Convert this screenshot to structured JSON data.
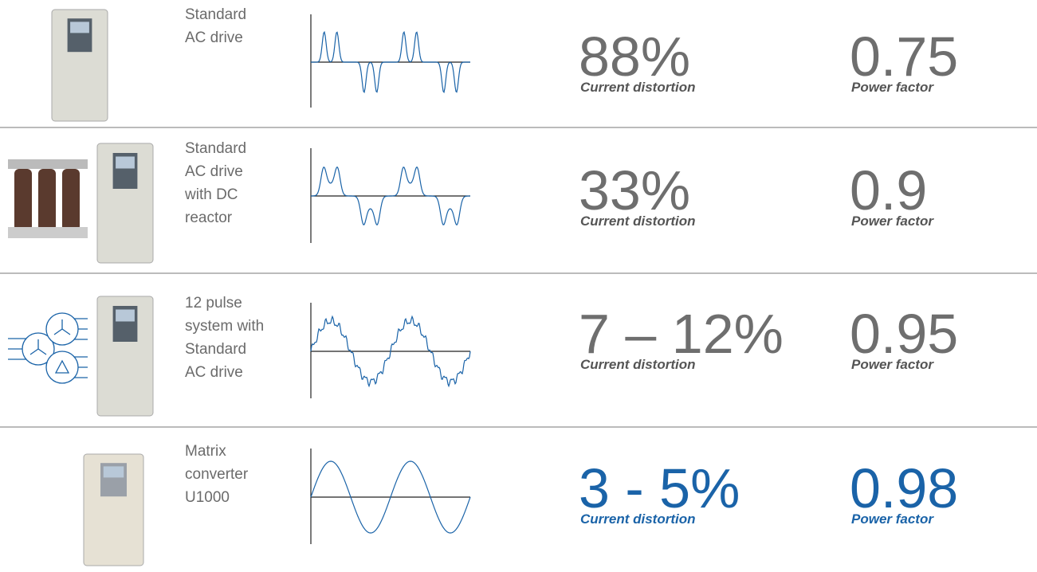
{
  "rows": [
    {
      "label_lines": [
        "Standard",
        "AC drive"
      ],
      "distortion": "88%",
      "distortion_caption": "Current distortion",
      "power_factor": "0.75",
      "power_factor_caption": "Power factor"
    },
    {
      "label_lines": [
        "Standard",
        "AC drive",
        "with DC",
        "reactor"
      ],
      "distortion": "33%",
      "distortion_caption": "Current distortion",
      "power_factor": "0.9",
      "power_factor_caption": "Power factor"
    },
    {
      "label_lines": [
        "12 pulse",
        "system with",
        "Standard",
        "AC drive"
      ],
      "distortion": "7 – 12%",
      "distortion_caption": "Current distortion",
      "power_factor": "0.95",
      "power_factor_caption": "Power factor"
    },
    {
      "label_lines": [
        "Matrix",
        "converter",
        "U1000"
      ],
      "distortion": "3 - 5%",
      "distortion_caption": "Current distortion",
      "power_factor": "0.98",
      "power_factor_caption": "Power factor"
    }
  ]
}
